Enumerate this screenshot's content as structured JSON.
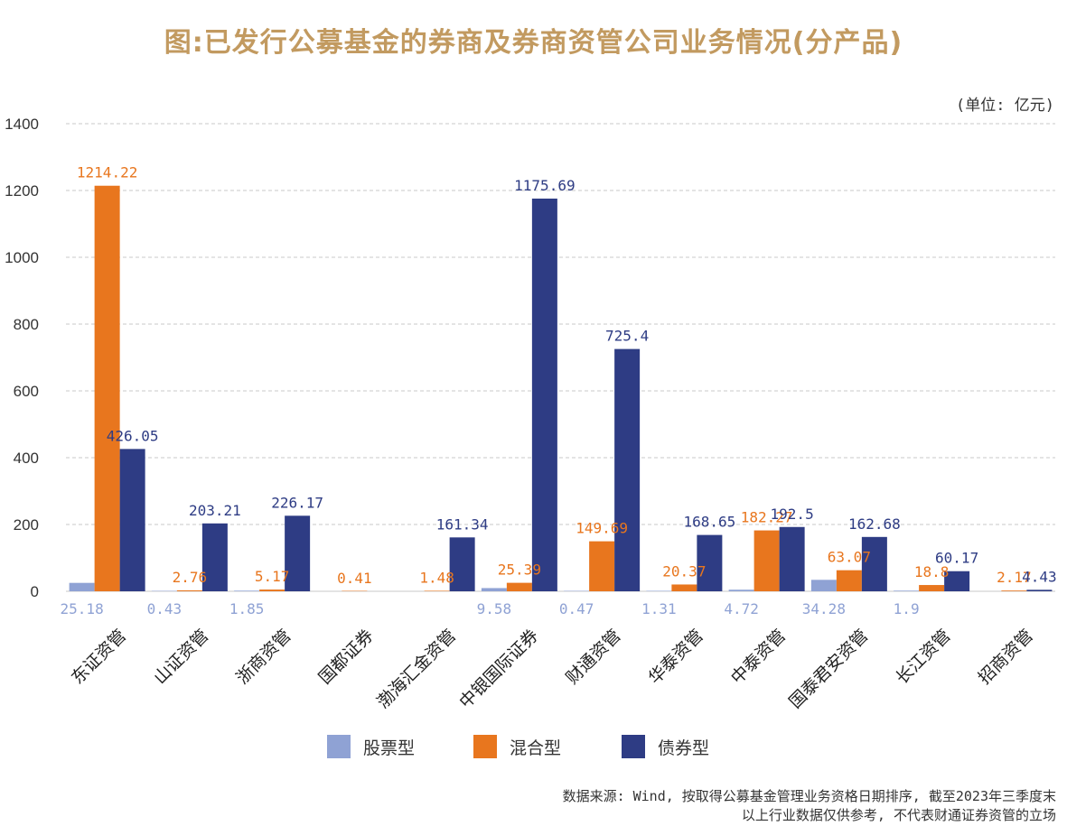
{
  "title": "图:已发行公募基金的券商及券商资管公司业务情况(分产品)",
  "unit": "(单位: 亿元)",
  "source_line1": "数据来源: Wind, 按取得公募基金管理业务资格日期排序, 截至2023年三季度末",
  "source_line2": "以上行业数据仅供参考, 不代表财通证券资管的立场",
  "colors": {
    "stock": "#8FA2D4",
    "mixed": "#E8761E",
    "bond": "#2E3C84",
    "title": "#C29A60",
    "grid": "#C8C8C8"
  },
  "chart_data": {
    "type": "bar",
    "categories": [
      "东证资管",
      "山证资管",
      "浙商资管",
      "国都证券",
      "渤海汇金资管",
      "中银国际证券",
      "财通资管",
      "华泰资管",
      "中泰资管",
      "国泰君安资管",
      "长江资管",
      "招商资管"
    ],
    "series": [
      {
        "name": "股票型",
        "values": [
          25.18,
          0.43,
          1.85,
          null,
          null,
          9.58,
          0.47,
          1.31,
          4.72,
          34.28,
          1.9,
          null
        ],
        "labels": [
          "25.18",
          "0.43",
          "1.85",
          "",
          "",
          "9.58",
          "0.47",
          "1.31",
          "4.72",
          "34.28",
          "1.9",
          ""
        ]
      },
      {
        "name": "混合型",
        "values": [
          1214.22,
          2.76,
          5.17,
          0.41,
          1.48,
          25.39,
          149.69,
          20.37,
          182.27,
          63.07,
          18.8,
          2.17
        ],
        "labels": [
          "1214.22",
          "2.76",
          "5.17",
          "0.41",
          "1.48",
          "25.39",
          "149.69",
          "20.37",
          "182.27",
          "63.07",
          "18.8",
          "2.17"
        ]
      },
      {
        "name": "债券型",
        "values": [
          426.05,
          203.21,
          226.17,
          null,
          161.34,
          1175.69,
          725.4,
          168.65,
          192.5,
          162.68,
          60.17,
          4.43
        ],
        "labels": [
          "426.05",
          "203.21",
          "226.17",
          "",
          "161.34",
          "1175.69",
          "725.4",
          "168.65",
          "192.5",
          "162.68",
          "60.17",
          "4.43"
        ]
      }
    ],
    "yticks": [
      "0",
      "200",
      "400",
      "600",
      "800",
      "1000",
      "1200",
      "1400"
    ],
    "ylim": [
      0,
      1400
    ],
    "grid": true,
    "legend": "bottom"
  }
}
